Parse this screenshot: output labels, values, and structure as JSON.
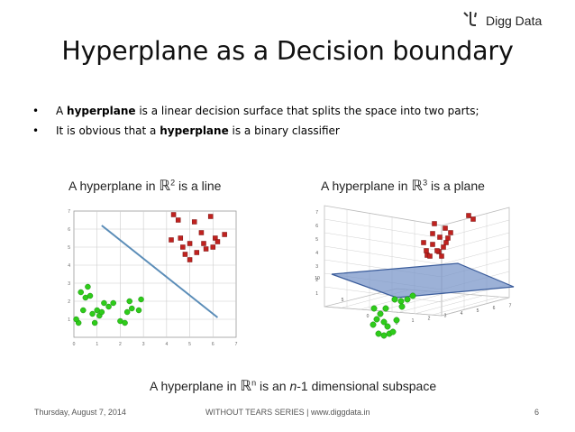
{
  "brand": {
    "name": "Digg Data",
    "icon": "digg-data-logo-icon"
  },
  "slide": {
    "title": "Hyperplane as a Decision boundary",
    "bullets": [
      {
        "symbol": "•",
        "before": "A ",
        "bold": "hyperplane",
        "after": " is a linear decision surface that splits the space into two parts;"
      },
      {
        "symbol": "•",
        "before": "It is obvious that a ",
        "bold": "hyperplane",
        "after": " is a binary classifier"
      }
    ]
  },
  "figures": {
    "left_caption": {
      "pre": "A hyperplane in ",
      "sym": "ℝ",
      "sup": "2",
      "post": " is a line"
    },
    "right_caption": {
      "pre": "A hyperplane in ",
      "sym": "ℝ",
      "sup": "3",
      "post": " is a plane"
    },
    "bottom_caption": {
      "pre": "A hyperplane in ",
      "sym": "ℝ",
      "sup": "n",
      "mid": " is an ",
      "italic": "n",
      "post": "-1 dimensional subspace"
    }
  },
  "chart_data": [
    {
      "type": "scatter",
      "title": "",
      "xlim": [
        0,
        7
      ],
      "ylim": [
        0,
        7
      ],
      "x_ticks": [
        "0",
        "1",
        "2",
        "3",
        "4",
        "5",
        "6",
        "7"
      ],
      "y_ticks": [
        "1",
        "2",
        "3",
        "4",
        "5",
        "6",
        "7"
      ],
      "grid": true,
      "series": [
        {
          "color": "#2ecc1a",
          "marker": "circle",
          "points": [
            [
              0.2,
              0.8
            ],
            [
              0.4,
              1.5
            ],
            [
              0.3,
              2.5
            ],
            [
              0.5,
              2.2
            ],
            [
              0.6,
              2.8
            ],
            [
              0.7,
              2.3
            ],
            [
              0.8,
              1.3
            ],
            [
              0.9,
              0.8
            ],
            [
              1.0,
              1.5
            ],
            [
              1.1,
              1.2
            ],
            [
              1.2,
              1.4
            ],
            [
              1.5,
              1.7
            ],
            [
              1.7,
              1.9
            ],
            [
              2.0,
              0.9
            ],
            [
              2.2,
              0.8
            ],
            [
              2.3,
              1.4
            ],
            [
              2.4,
              2.0
            ],
            [
              2.5,
              1.6
            ],
            [
              2.8,
              1.5
            ],
            [
              2.9,
              2.1
            ],
            [
              1.3,
              1.9
            ],
            [
              0.1,
              1.0
            ]
          ]
        },
        {
          "color": "#c0221f",
          "marker": "square",
          "points": [
            [
              4.3,
              6.8
            ],
            [
              4.5,
              6.5
            ],
            [
              4.6,
              5.5
            ],
            [
              4.7,
              5.0
            ],
            [
              4.8,
              4.6
            ],
            [
              5.0,
              5.2
            ],
            [
              5.2,
              6.4
            ],
            [
              5.3,
              4.7
            ],
            [
              5.5,
              5.8
            ],
            [
              5.6,
              5.2
            ],
            [
              5.7,
              4.9
            ],
            [
              5.9,
              6.7
            ],
            [
              6.0,
              5.0
            ],
            [
              6.1,
              5.5
            ],
            [
              6.2,
              5.3
            ],
            [
              4.2,
              5.4
            ],
            [
              5.0,
              4.3
            ],
            [
              6.5,
              5.7
            ]
          ]
        }
      ],
      "line": [
        [
          1.2,
          6.2
        ],
        [
          6.2,
          1.1
        ]
      ]
    },
    {
      "type": "scatter",
      "title": "",
      "z_ticks": [
        "1",
        "2",
        "3",
        "4",
        "5",
        "6",
        "7"
      ],
      "x_ticks": [
        "0",
        "5",
        "10"
      ],
      "y_ticks": [
        "0",
        "1",
        "2",
        "3",
        "4",
        "5",
        "6",
        "7"
      ],
      "grid": true,
      "series": [
        {
          "color": "#c0221f",
          "marker": "square",
          "count": 18
        },
        {
          "color": "#2ecc1a",
          "marker": "circle",
          "count": 17
        }
      ],
      "plane_color": "#7b97c9"
    }
  ],
  "footer": {
    "date": "Thursday, August 7, 2014",
    "series": "WITHOUT TEARS SERIES | www.diggdata.in",
    "page": "6"
  }
}
